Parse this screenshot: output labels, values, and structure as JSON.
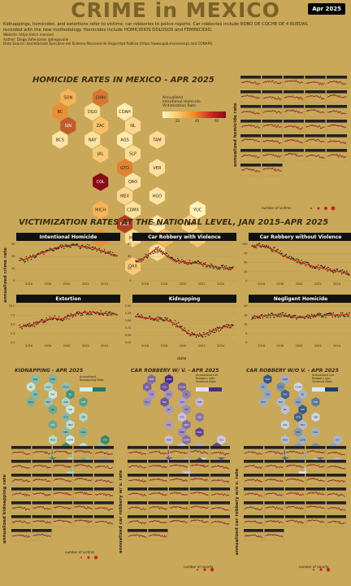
{
  "header": {
    "title": "CRIME in MEXICO",
    "badge": "Apr 2025",
    "intro_lines": [
      "Kidnappings, homicides, and extortions refer to victims; car robberies to police reports. Car robberies include ROBO DE COCHE DE 4 RUEDAS",
      "recorded with the new methodology. Homicides include HOMICIDIOS DOLOSOS and FEMINICIDIO.",
      "According to the National Crime Victimization Survey (ENVIPE) extortions have remained roughly stabe, the same as according to the SNSP.",
      "Car Robberies do match the stable ENVIPE trend (2015-2016), and homicides follow the trend reported by the INEGI"
    ],
    "website": "Website: https://elcri.men/en/",
    "author": "Author: Diego Valle-Jones @diegovalle",
    "source": "Data Source: Secretariado Ejecutivo del Sistema Nacional de Seguridad Pública (https://www.gob.mx/sesnsp) and CONAPO"
  },
  "homicide_map": {
    "title": "HOMICIDE RATES IN MEXICO - APR 2025",
    "legend_title": [
      "Annualized",
      "Intentional Homicide",
      "Victimization Rate"
    ],
    "legend_ticks": [
      "20",
      "40",
      "60"
    ],
    "colors": {
      "low": "#fff7c2",
      "mid": "#f5a23a",
      "high": "#8b0a17"
    }
  },
  "states": [
    {
      "code": "SON",
      "c": 2,
      "r": 0,
      "v": 30
    },
    {
      "code": "CHIH",
      "c": 4,
      "r": 0,
      "v": 48
    },
    {
      "code": "BC",
      "c": 1,
      "r": 1,
      "v": 42
    },
    {
      "code": "DGO",
      "c": 3,
      "r": 1,
      "v": 12
    },
    {
      "code": "COAH",
      "c": 5,
      "r": 1,
      "v": 5
    },
    {
      "code": "SIN",
      "c": 2,
      "r": 2,
      "v": 55
    },
    {
      "code": "ZAC",
      "c": 4,
      "r": 2,
      "v": 24
    },
    {
      "code": "NL",
      "c": 6,
      "r": 2,
      "v": 14
    },
    {
      "code": "BCS",
      "c": 1,
      "r": 3,
      "v": 8
    },
    {
      "code": "NAY",
      "c": 3,
      "r": 3,
      "v": 10
    },
    {
      "code": "AGS",
      "c": 5,
      "r": 3,
      "v": 6
    },
    {
      "code": "TAM",
      "c": 7,
      "r": 3,
      "v": 12
    },
    {
      "code": "JAL",
      "c": 4,
      "r": 4,
      "v": 20
    },
    {
      "code": "SLP",
      "c": 6,
      "r": 4,
      "v": 12
    },
    {
      "code": "GTO",
      "c": 5,
      "r": 5,
      "v": 45
    },
    {
      "code": "VER",
      "c": 7,
      "r": 5,
      "v": 10
    },
    {
      "code": "COL",
      "c": 4,
      "r": 6,
      "v": 75
    },
    {
      "code": "QRO",
      "c": 6,
      "r": 6,
      "v": 9
    },
    {
      "code": "HGO",
      "c": 7,
      "r": 7,
      "v": 8
    },
    {
      "code": "MEX",
      "c": 5,
      "r": 7,
      "v": 14
    },
    {
      "code": "MICH",
      "c": 4,
      "r": 8,
      "v": 30
    },
    {
      "code": "CDMX",
      "c": 6,
      "r": 8,
      "v": 10
    },
    {
      "code": "MOR",
      "c": 5,
      "r": 9,
      "v": 62
    },
    {
      "code": "YUC",
      "c": 10,
      "r": 8,
      "v": 2
    },
    {
      "code": "TLAX",
      "c": 7,
      "r": 9,
      "v": 7
    },
    {
      "code": "CAMP",
      "c": 9,
      "r": 9,
      "v": 16
    },
    {
      "code": "GRO",
      "c": 4,
      "r": 10,
      "v": 42
    },
    {
      "code": "PUE",
      "c": 6,
      "r": 10,
      "v": 12
    },
    {
      "code": "TAB",
      "c": 8,
      "r": 10,
      "v": 25
    },
    {
      "code": "QROO",
      "c": 10,
      "r": 10,
      "v": 20
    },
    {
      "code": "CHPS",
      "c": 7,
      "r": 11,
      "v": 12
    },
    {
      "code": "OAX",
      "c": 6,
      "r": 12,
      "v": 20
    }
  ],
  "national": {
    "title": "VICTIMIZATION RATES AT THE NATIONAL LEVEL, JAN 2015–APR 2025",
    "ylabel": "annualized crime rate",
    "xlabel": "date",
    "x_ticks": [
      "2016",
      "2018",
      "2020",
      "2022",
      "2024"
    ]
  },
  "chart_data": [
    {
      "type": "scatter",
      "title": "Intentional Homicide",
      "x_start": 2015,
      "x_end": 2025.33,
      "ylim": [
        0,
        30
      ],
      "y_ticks": [
        "0",
        "10",
        "20",
        "30"
      ],
      "values": [
        17,
        17,
        18,
        19,
        20,
        21,
        22,
        23,
        24,
        25,
        26,
        27,
        28,
        28,
        29,
        29,
        29,
        29,
        28,
        28,
        28,
        27,
        27,
        26,
        25,
        24,
        23,
        22,
        21,
        20
      ]
    },
    {
      "type": "scatter",
      "title": "Car Robbery with Violence",
      "x_start": 2015,
      "x_end": 2025.33,
      "ylim": [
        0,
        60
      ],
      "y_ticks": [
        "0",
        "20",
        "40",
        "60"
      ],
      "values": [
        30,
        33,
        36,
        40,
        44,
        48,
        52,
        50,
        46,
        42,
        38,
        34,
        33,
        32,
        31,
        30,
        30,
        29,
        29,
        28,
        27,
        26,
        25,
        24,
        23,
        22,
        22,
        21,
        20,
        20
      ]
    },
    {
      "type": "scatter",
      "title": "Car Robbery without Violence",
      "x_start": 2015,
      "x_end": 2025.33,
      "ylim": [
        0,
        100
      ],
      "y_ticks": [
        "0",
        "25",
        "50",
        "75",
        "100"
      ],
      "values": [
        95,
        96,
        96,
        95,
        93,
        90,
        86,
        82,
        76,
        70,
        66,
        62,
        58,
        55,
        52,
        49,
        46,
        43,
        40,
        38,
        36,
        34,
        32,
        30,
        28,
        27,
        25,
        24,
        22,
        20
      ]
    },
    {
      "type": "scatter",
      "title": "Extortion",
      "x_start": 2015,
      "x_end": 2025.33,
      "ylim": [
        0,
        10
      ],
      "y_ticks": [
        "0.0",
        "2.5",
        "5.0",
        "7.5",
        "10.0"
      ],
      "values": [
        4.2,
        4.4,
        4.6,
        4.8,
        5.0,
        5.3,
        5.8,
        6.0,
        6.2,
        6.5,
        6.8,
        6.6,
        6.4,
        6.6,
        7.0,
        7.3,
        7.6,
        7.9,
        8.0,
        8.2,
        8.2,
        8.3,
        8.3,
        8.2,
        8.1,
        8.0,
        7.9,
        7.8,
        7.8,
        7.7
      ]
    },
    {
      "type": "scatter",
      "title": "Kidnapping",
      "x_start": 2015,
      "x_end": 2025.33,
      "ylim": [
        0.25,
        1.5
      ],
      "y_ticks": [
        "0.25",
        "0.50",
        "0.75",
        "1.00",
        "1.25",
        "1.50"
      ],
      "values": [
        1.15,
        1.12,
        1.1,
        1.08,
        1.08,
        1.07,
        1.06,
        1.05,
        1.04,
        1.02,
        0.98,
        0.93,
        0.86,
        0.78,
        0.7,
        0.62,
        0.55,
        0.52,
        0.5,
        0.5,
        0.52,
        0.56,
        0.62,
        0.66,
        0.7,
        0.75,
        0.78,
        0.8,
        0.82,
        0.82
      ]
    },
    {
      "type": "scatter",
      "title": "Negligent Homicide",
      "x_start": 2015,
      "x_end": 2025.33,
      "ylim": [
        0,
        20
      ],
      "y_ticks": [
        "0",
        "5",
        "10",
        "15",
        "20"
      ],
      "values": [
        14.0,
        14.2,
        14.4,
        14.6,
        14.8,
        14.9,
        15.0,
        15.0,
        15.1,
        15.2,
        15.0,
        14.6,
        14.2,
        13.8,
        13.6,
        13.8,
        14.0,
        14.3,
        14.5,
        14.7,
        14.8,
        14.9,
        15.0,
        15.0,
        15.1,
        15.1,
        15.2,
        15.2,
        15.3,
        15.3
      ]
    }
  ],
  "small_maps": [
    {
      "title": "KIDNAPPING - APR 2025",
      "legend": [
        "Annualized",
        "Kidnapping Rate"
      ],
      "low": "#d8f0e8",
      "high": "#1e7a5a",
      "rate": "annualized kidnapping rate"
    },
    {
      "title": "CAR ROBBERY W/ V. - APR 2025",
      "legend": [
        "Annualized Car",
        "Robbery with",
        "Violence Rate"
      ],
      "low": "#e6e0f2",
      "high": "#4a2e7a",
      "rate": "annualized car robbery w/ v. rate"
    },
    {
      "title": "CAR ROBBERY W/O V. - APR 2025",
      "legend": [
        "Annualized Car",
        "Robbery w/o",
        "Violence Rate"
      ],
      "low": "#dfe8f2",
      "high": "#1e3f6e",
      "rate": "annualized car robbery w/o v. rate"
    }
  ],
  "homicide_side": {
    "ylabel": "annualized homicide rate",
    "legend": "number of victims"
  },
  "bottom_legends": [
    "number of victims",
    "number of reports",
    "number of reports"
  ]
}
